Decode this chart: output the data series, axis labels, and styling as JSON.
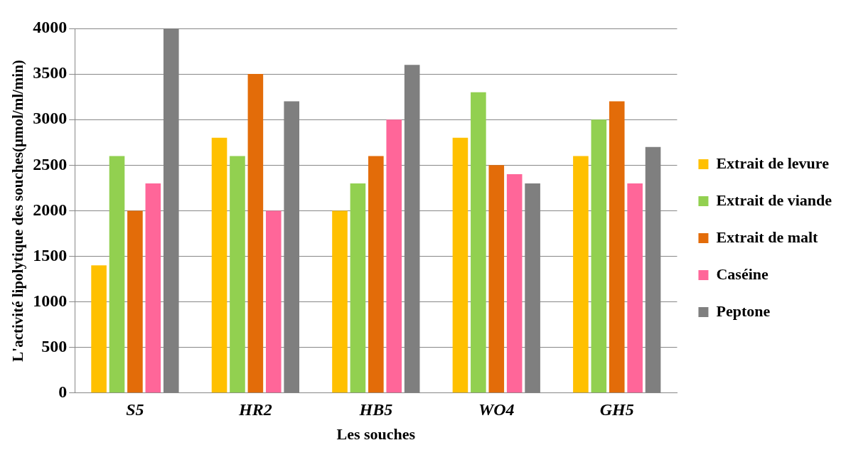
{
  "chart_data": {
    "type": "bar",
    "xlabel": "Les souches",
    "ylabel": "L'activité lipolytique des souches(µmol/ml/min)",
    "categories": [
      "S5",
      "HR2",
      "HB5",
      "WO4",
      "GH5"
    ],
    "series": [
      {
        "name": "Extrait de levure",
        "color": "#ffc000",
        "values": [
          1400,
          2800,
          2000,
          2800,
          2600
        ]
      },
      {
        "name": "Extrait de viande",
        "color": "#92d050",
        "values": [
          2600,
          2600,
          2300,
          3300,
          3000
        ]
      },
      {
        "name": "Extrait de malt",
        "color": "#e36c09",
        "values": [
          2000,
          3500,
          2600,
          2500,
          3200
        ]
      },
      {
        "name": "Caséine",
        "color": "#ff6699",
        "values": [
          2300,
          2000,
          3000,
          2400,
          2300
        ]
      },
      {
        "name": "Peptone",
        "color": "#7f7f7f",
        "values": [
          4000,
          3200,
          3600,
          2300,
          2700
        ]
      }
    ],
    "ylim": [
      0,
      4000
    ],
    "yticks": [
      0,
      500,
      1000,
      1500,
      2000,
      2500,
      3000,
      3500,
      4000
    ],
    "grid": "y",
    "legend": "right"
  }
}
